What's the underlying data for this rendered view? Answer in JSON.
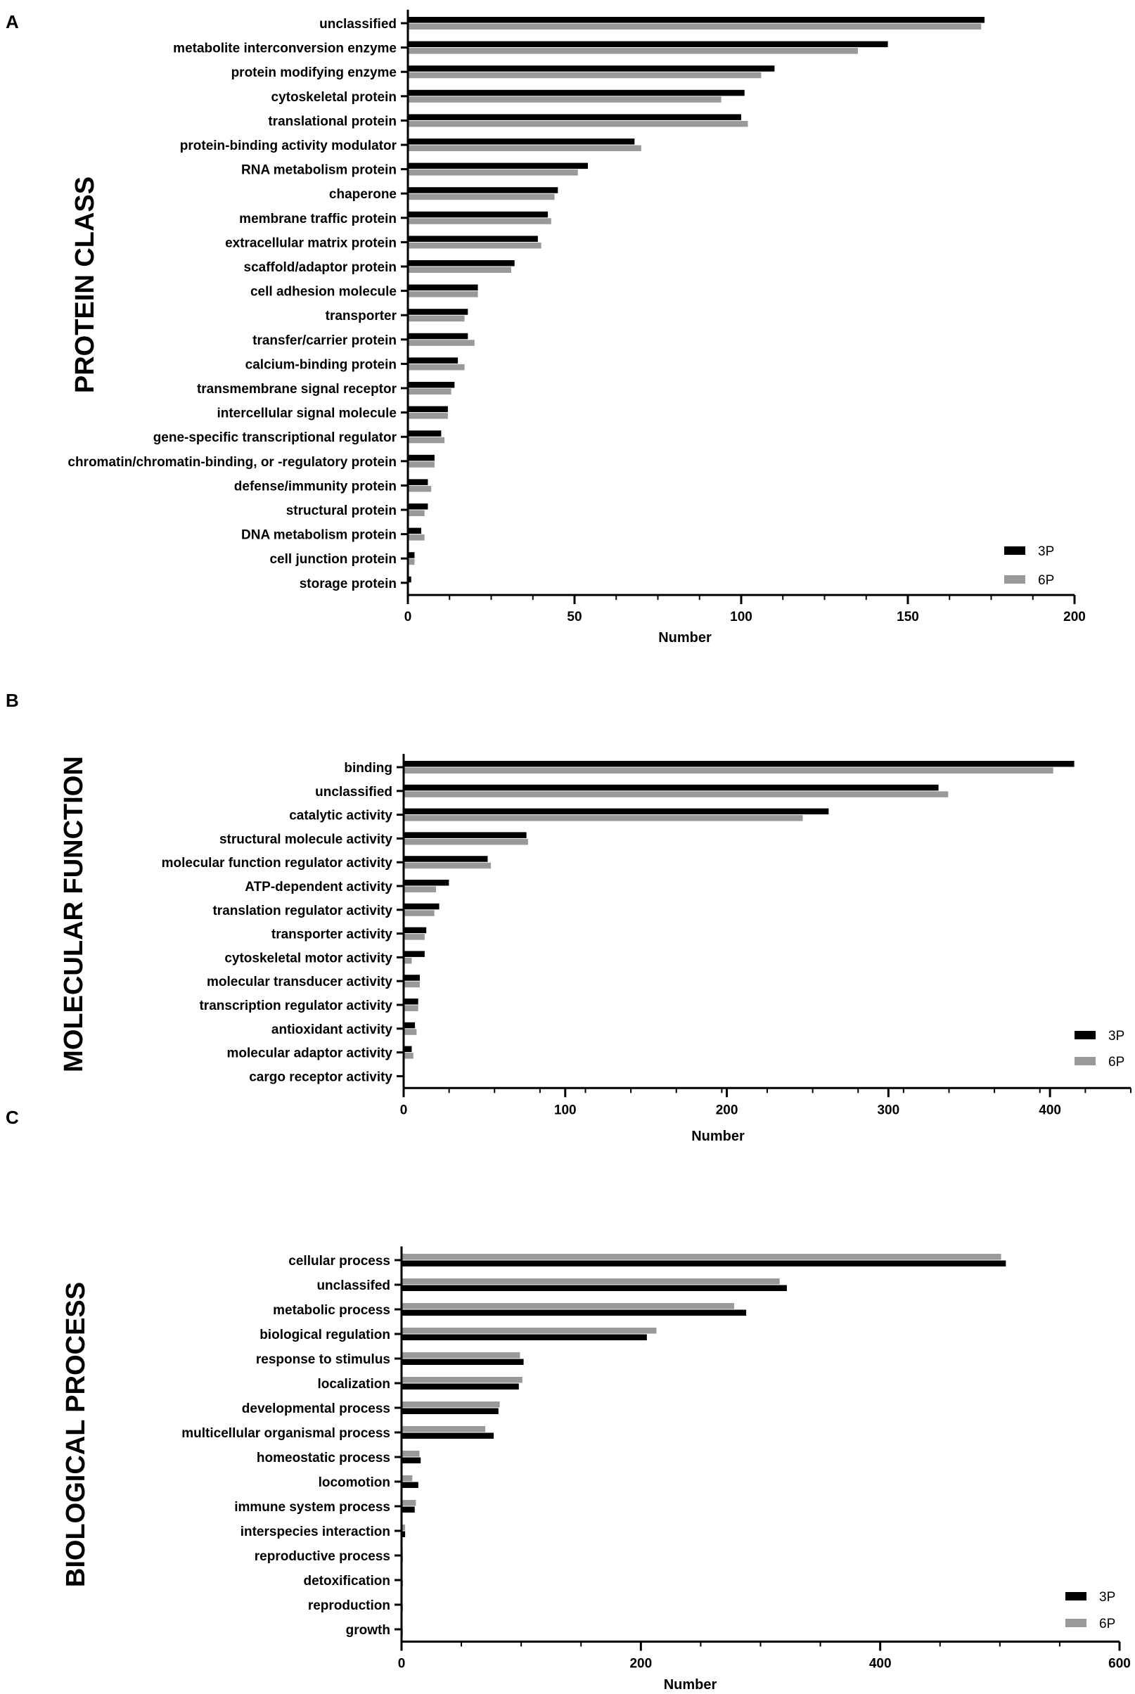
{
  "chart_data": [
    {
      "type": "bar",
      "panel": "A",
      "title": "",
      "ylabel": "PROTEIN CLASS",
      "xlabel": "Number",
      "xlim": [
        0,
        200
      ],
      "xticks": [
        0,
        50,
        100,
        150,
        200
      ],
      "categories": [
        "unclassified",
        "metabolite interconversion enzyme",
        "protein modifying enzyme",
        "cytoskeletal protein",
        "translational protein",
        "protein-binding activity modulator",
        "RNA metabolism protein",
        "chaperone",
        "membrane traffic protein",
        "extracellular matrix protein",
        "scaffold/adaptor protein",
        "cell adhesion molecule",
        "transporter",
        "transfer/carrier protein",
        "calcium-binding protein",
        "transmembrane signal receptor",
        "intercellular signal molecule",
        "gene-specific transcriptional regulator",
        "chromatin/chromatin-binding, or -regulatory protein",
        "defense/immunity protein",
        "structural protein",
        "DNA metabolism protein",
        "cell junction protein",
        "storage protein"
      ],
      "series": [
        {
          "name": "3P",
          "color": "#000000",
          "values": [
            173,
            144,
            110,
            101,
            100,
            68,
            54,
            45,
            42,
            39,
            32,
            21,
            18,
            18,
            15,
            14,
            12,
            10,
            8,
            6,
            6,
            4,
            2,
            1
          ]
        },
        {
          "name": "6P",
          "color": "#999999",
          "values": [
            172,
            135,
            106,
            94,
            102,
            70,
            51,
            44,
            43,
            40,
            31,
            21,
            17,
            20,
            17,
            13,
            12,
            11,
            8,
            7,
            5,
            5,
            2,
            0
          ]
        }
      ],
      "legend_position": "bottom-right"
    },
    {
      "type": "bar",
      "panel": "B",
      "title": "",
      "ylabel": "MOLECULAR FUNCTION",
      "xlabel": "Number",
      "xlim": [
        0,
        450
      ],
      "xticks": [
        0,
        100,
        200,
        300,
        400
      ],
      "categories": [
        "binding",
        "unclassified",
        "catalytic activity",
        "structural molecule activity",
        "molecular function regulator activity",
        "ATP-dependent activity",
        "translation regulator activity",
        "transporter activity",
        "cytoskeletal motor activity",
        "molecular transducer activity",
        "transcription regulator activity",
        "antioxidant activity",
        "molecular adaptor activity",
        "cargo receptor activity"
      ],
      "series": [
        {
          "name": "3P",
          "color": "#000000",
          "values": [
            415,
            331,
            263,
            76,
            52,
            28,
            22,
            14,
            13,
            10,
            9,
            7,
            5,
            0
          ]
        },
        {
          "name": "6P",
          "color": "#999999",
          "values": [
            402,
            337,
            247,
            77,
            54,
            20,
            19,
            13,
            5,
            10,
            9,
            8,
            6,
            0
          ]
        }
      ],
      "legend_position": "bottom-right"
    },
    {
      "type": "bar",
      "panel": "C",
      "title": "",
      "ylabel": "BIOLOGICAL PROCESS",
      "xlabel": "Number",
      "xlim": [
        0,
        600
      ],
      "xticks": [
        0,
        200,
        400,
        600
      ],
      "categories": [
        "cellular process",
        "unclassifed",
        "metabolic process",
        "biological regulation",
        "response to stimulus",
        "localization",
        "developmental process",
        "multicellular organismal process",
        "homeostatic process",
        "locomotion",
        "immune system process",
        "interspecies interaction",
        "reproductive process",
        "detoxification",
        "reproduction",
        "growth"
      ],
      "series": [
        {
          "name": "3P",
          "color": "#000000",
          "values": [
            505,
            322,
            288,
            205,
            102,
            98,
            81,
            77,
            16,
            14,
            11,
            3,
            1,
            1,
            1,
            1
          ]
        },
        {
          "name": "6P",
          "color": "#999999",
          "values": [
            501,
            316,
            278,
            213,
            99,
            101,
            82,
            70,
            15,
            9,
            12,
            3,
            1,
            0,
            0,
            0
          ]
        }
      ],
      "legend_position": "bottom-right"
    }
  ]
}
